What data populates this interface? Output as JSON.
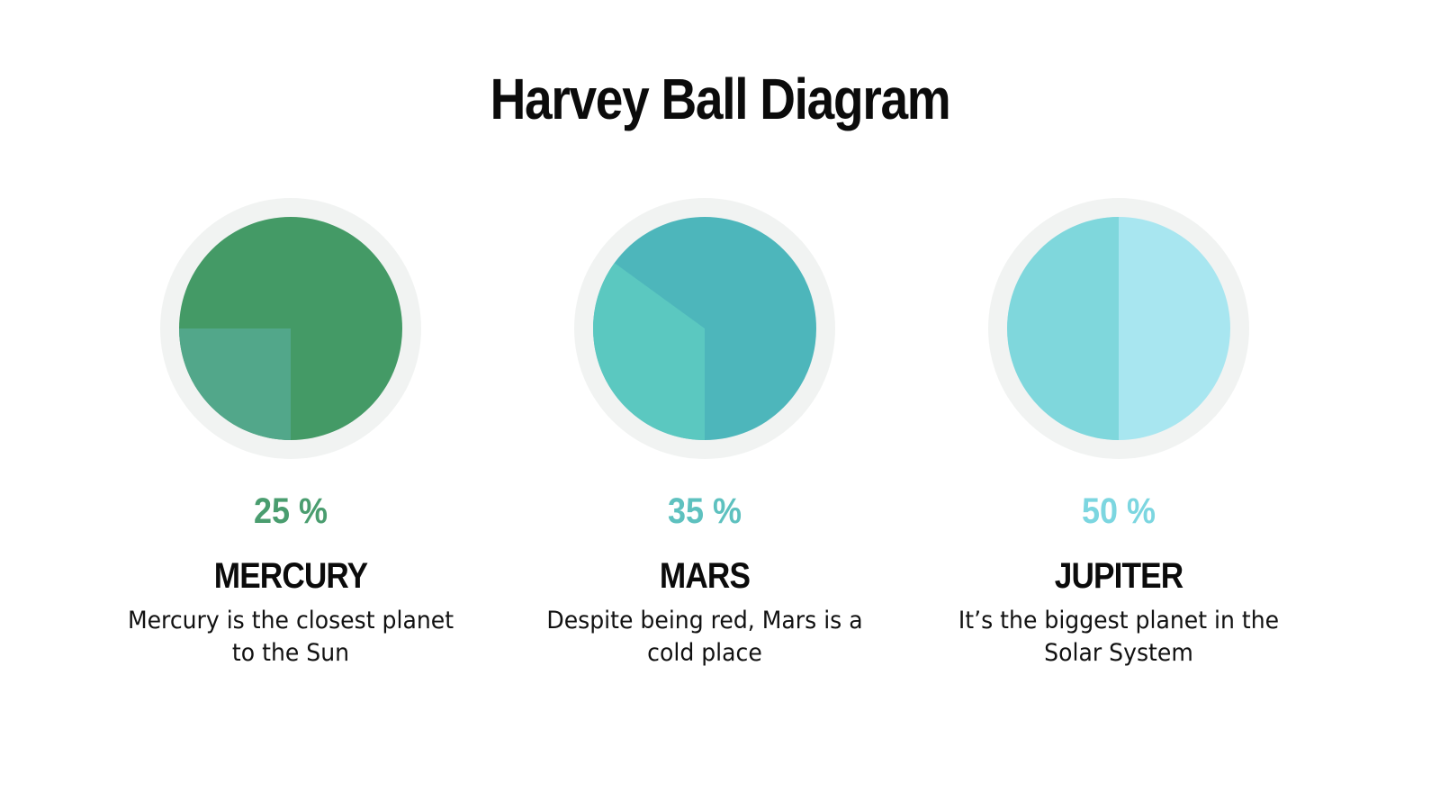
{
  "page": {
    "title": "Harvey Ball Diagram"
  },
  "items": [
    {
      "value_label": "25 %",
      "value": 25,
      "name": "MERCURY",
      "description": "Mercury is the closest planet to the Sun",
      "colors": {
        "main": "#449a66",
        "slice": "#52a78a",
        "accent": "#4a9d6f"
      }
    },
    {
      "value_label": "35 %",
      "value": 35,
      "name": "MARS",
      "description": "Despite being red, Mars is a cold place",
      "colors": {
        "main": "#4db6bb",
        "slice": "#5bc8c0",
        "accent": "#5ec1bf"
      }
    },
    {
      "value_label": "50 %",
      "value": 50,
      "name": "JUPITER",
      "description": "It’s the biggest planet in the Solar System",
      "colors": {
        "main": "#a8e6f0",
        "slice": "#7fd7dc",
        "accent": "#7cd6e0"
      }
    }
  ],
  "ring_color": "#f1f3f2"
}
